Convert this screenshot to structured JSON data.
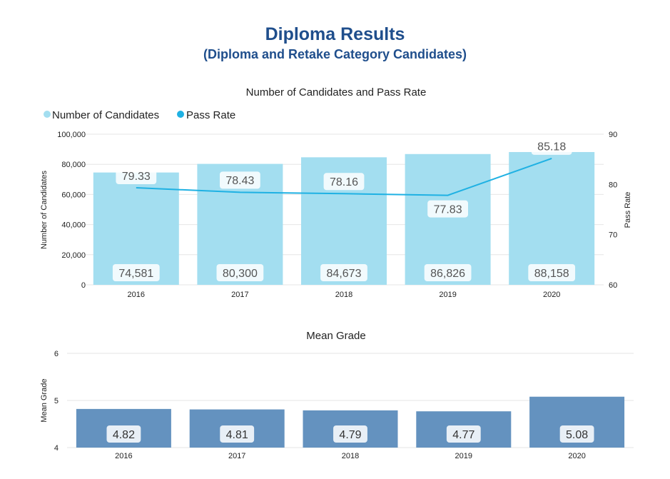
{
  "header": {
    "title": "Diploma Results",
    "subtitle": "(Diploma and Retake Category Candidates)"
  },
  "chart_data": [
    {
      "type": "bar",
      "title": "Number of Candidates and Pass Rate",
      "categories": [
        "2016",
        "2017",
        "2018",
        "2019",
        "2020"
      ],
      "ylabel": "Number of Candidates",
      "ylim": [
        0,
        100000
      ],
      "yticks": [
        "0",
        "20,000",
        "40,000",
        "60,000",
        "80,000",
        "100,000"
      ],
      "y2label": "Pass Rate",
      "y2lim": [
        60,
        90
      ],
      "y2ticks": [
        "60",
        "70",
        "80",
        "90"
      ],
      "legend_position": "top-left",
      "grid": true,
      "series": [
        {
          "name": "Number of Candidates",
          "type": "bar",
          "color": "#a3def0",
          "values": [
            74581,
            80300,
            84673,
            86826,
            88158
          ],
          "labels": [
            "74,581",
            "80,300",
            "84,673",
            "86,826",
            "88,158"
          ]
        },
        {
          "name": "Pass Rate",
          "type": "line",
          "axis": "right",
          "color": "#1fb1e3",
          "values": [
            79.33,
            78.43,
            78.16,
            77.83,
            85.18
          ],
          "labels": [
            "79.33",
            "78.43",
            "78.16",
            "77.83",
            "85.18"
          ]
        }
      ]
    },
    {
      "type": "bar",
      "title": "Mean Grade",
      "categories": [
        "2016",
        "2017",
        "2018",
        "2019",
        "2020"
      ],
      "ylabel": "Mean Grade",
      "ylim": [
        4,
        6
      ],
      "yticks": [
        "4",
        "5",
        "6"
      ],
      "grid": true,
      "series": [
        {
          "color": "#6492bf",
          "values": [
            4.82,
            4.81,
            4.79,
            4.77,
            5.08
          ],
          "labels": [
            "4.82",
            "4.81",
            "4.79",
            "4.77",
            "5.08"
          ]
        }
      ]
    }
  ]
}
